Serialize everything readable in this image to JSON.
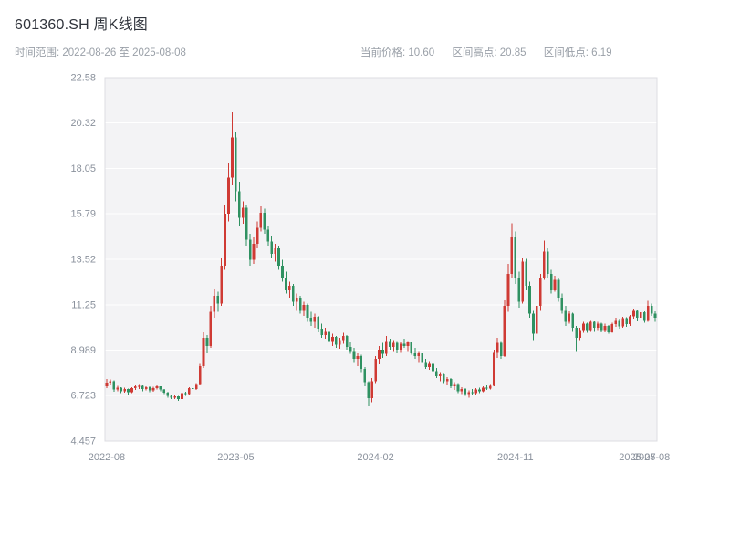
{
  "header": {
    "title": "601360.SH 周K线图",
    "time_range_label": "时间范围: 2022-08-26 至 2025-08-08",
    "current_price_label": "当前价格: 10.60",
    "range_high_label": "区间高点: 20.85",
    "range_low_label": "区间低点: 6.19"
  },
  "colors": {
    "up": "#cf3a34",
    "down": "#2f9161",
    "plot_bg": "#f3f3f5",
    "grid": "#ffffff",
    "plot_border": "#dddde2",
    "axis_text": "#8a919c",
    "title_text": "#30343c",
    "subtitle_text": "#9aa0a8"
  },
  "chart_data": {
    "type": "candlestick",
    "title": "601360.SH 周K线图",
    "interval": "weekly",
    "symbol": "601360.SH",
    "date_range": [
      "2022-08-26",
      "2025-08-08"
    ],
    "current_price": 10.6,
    "range_high": 20.85,
    "range_low": 6.19,
    "ylim": [
      4.457,
      22.58
    ],
    "y_ticks": [
      4.457,
      6.723,
      8.989,
      11.25,
      13.52,
      15.79,
      18.05,
      20.32,
      22.58
    ],
    "x_ticks": [
      {
        "label": "2022-08",
        "index": 0
      },
      {
        "label": "2023-05",
        "index": 36
      },
      {
        "label": "2024-02",
        "index": 75
      },
      {
        "label": "2024-11",
        "index": 114
      },
      {
        "label": "2025-07",
        "index": 148
      },
      {
        "label": "2025-08",
        "index": 152
      }
    ],
    "up_color": "#cf3a34",
    "down_color": "#2f9161",
    "candles_format": [
      "open",
      "high",
      "low",
      "close"
    ],
    "candles": [
      [
        7.2,
        7.55,
        7.1,
        7.38
      ],
      [
        7.38,
        7.52,
        7.25,
        7.45
      ],
      [
        7.45,
        7.48,
        6.92,
        7.02
      ],
      [
        7.02,
        7.22,
        6.95,
        7.12
      ],
      [
        7.12,
        7.15,
        6.85,
        6.95
      ],
      [
        6.95,
        7.12,
        6.88,
        7.05
      ],
      [
        7.05,
        7.08,
        6.78,
        6.9
      ],
      [
        6.9,
        7.15,
        6.85,
        7.1
      ],
      [
        7.1,
        7.25,
        7.0,
        7.18
      ],
      [
        7.18,
        7.3,
        7.05,
        7.22
      ],
      [
        7.22,
        7.25,
        6.95,
        7.05
      ],
      [
        7.05,
        7.2,
        6.98,
        7.14
      ],
      [
        7.14,
        7.18,
        6.9,
        6.98
      ],
      [
        6.98,
        7.16,
        6.92,
        7.1
      ],
      [
        7.1,
        7.24,
        7.02,
        7.18
      ],
      [
        7.18,
        7.2,
        6.95,
        7.02
      ],
      [
        7.02,
        7.06,
        6.8,
        6.88
      ],
      [
        6.88,
        6.92,
        6.62,
        6.7
      ],
      [
        6.7,
        6.78,
        6.55,
        6.62
      ],
      [
        6.62,
        6.75,
        6.56,
        6.69
      ],
      [
        6.69,
        6.72,
        6.45,
        6.55
      ],
      [
        6.55,
        6.9,
        6.52,
        6.85
      ],
      [
        6.85,
        6.92,
        6.72,
        6.8
      ],
      [
        6.8,
        7.15,
        6.78,
        7.1
      ],
      [
        7.1,
        7.18,
        6.98,
        7.05
      ],
      [
        7.05,
        7.35,
        7.0,
        7.3
      ],
      [
        7.3,
        8.35,
        7.25,
        8.2
      ],
      [
        8.2,
        9.9,
        8.1,
        9.6
      ],
      [
        9.6,
        9.75,
        8.85,
        9.2
      ],
      [
        9.2,
        11.2,
        9.1,
        10.9
      ],
      [
        10.9,
        12.05,
        10.6,
        11.7
      ],
      [
        11.7,
        11.9,
        10.9,
        11.3
      ],
      [
        11.3,
        13.6,
        11.2,
        13.2
      ],
      [
        13.2,
        16.2,
        13.0,
        15.8
      ],
      [
        15.8,
        18.3,
        15.4,
        17.6
      ],
      [
        17.6,
        20.85,
        17.2,
        19.6
      ],
      [
        19.6,
        19.9,
        16.4,
        16.9
      ],
      [
        16.9,
        17.4,
        15.2,
        15.6
      ],
      [
        15.6,
        16.4,
        15.3,
        16.1
      ],
      [
        16.1,
        16.2,
        14.2,
        14.5
      ],
      [
        14.5,
        14.8,
        13.2,
        13.5
      ],
      [
        13.5,
        14.6,
        13.3,
        14.3
      ],
      [
        14.3,
        15.4,
        14.1,
        15.1
      ],
      [
        15.1,
        16.15,
        14.9,
        15.85
      ],
      [
        15.85,
        16.05,
        14.8,
        15.0
      ],
      [
        15.0,
        15.2,
        14.2,
        14.4
      ],
      [
        14.4,
        14.7,
        13.6,
        13.8
      ],
      [
        13.8,
        14.3,
        13.4,
        14.1
      ],
      [
        14.1,
        14.2,
        13.0,
        13.2
      ],
      [
        13.2,
        13.5,
        12.4,
        12.6
      ],
      [
        12.6,
        12.9,
        11.8,
        12.0
      ],
      [
        12.0,
        12.4,
        11.6,
        12.2
      ],
      [
        12.2,
        12.3,
        11.2,
        11.4
      ],
      [
        11.4,
        11.8,
        11.0,
        11.6
      ],
      [
        11.6,
        11.7,
        10.8,
        11.0
      ],
      [
        11.0,
        11.4,
        10.7,
        11.25
      ],
      [
        11.25,
        11.3,
        10.4,
        10.6
      ],
      [
        10.6,
        10.9,
        10.2,
        10.4
      ],
      [
        10.4,
        10.8,
        10.1,
        10.65
      ],
      [
        10.65,
        10.7,
        9.9,
        10.05
      ],
      [
        10.05,
        10.3,
        9.6,
        9.75
      ],
      [
        9.75,
        10.1,
        9.55,
        9.95
      ],
      [
        9.95,
        10.0,
        9.3,
        9.45
      ],
      [
        9.45,
        9.8,
        9.2,
        9.65
      ],
      [
        9.65,
        9.7,
        9.1,
        9.25
      ],
      [
        9.25,
        9.6,
        9.05,
        9.5
      ],
      [
        9.5,
        9.85,
        9.3,
        9.7
      ],
      [
        9.7,
        9.75,
        9.0,
        9.15
      ],
      [
        9.15,
        9.4,
        8.8,
        8.95
      ],
      [
        8.95,
        9.1,
        8.4,
        8.55
      ],
      [
        8.55,
        8.85,
        8.2,
        8.7
      ],
      [
        8.7,
        8.75,
        7.9,
        8.05
      ],
      [
        8.05,
        8.15,
        7.2,
        7.4
      ],
      [
        7.4,
        7.45,
        6.19,
        6.6
      ],
      [
        6.6,
        7.6,
        6.4,
        7.45
      ],
      [
        7.45,
        8.7,
        7.35,
        8.55
      ],
      [
        8.55,
        9.2,
        8.3,
        9.0
      ],
      [
        9.0,
        9.35,
        8.6,
        8.8
      ],
      [
        8.8,
        9.7,
        8.7,
        9.45
      ],
      [
        9.45,
        9.55,
        9.0,
        9.15
      ],
      [
        9.15,
        9.5,
        8.95,
        9.35
      ],
      [
        9.35,
        9.45,
        8.85,
        9.0
      ],
      [
        9.0,
        9.4,
        8.9,
        9.3
      ],
      [
        9.3,
        9.55,
        9.1,
        9.2
      ],
      [
        9.2,
        9.45,
        8.95,
        9.38
      ],
      [
        9.38,
        9.42,
        8.75,
        8.85
      ],
      [
        8.85,
        9.1,
        8.55,
        8.7
      ],
      [
        8.7,
        8.95,
        8.4,
        8.85
      ],
      [
        8.85,
        8.9,
        8.25,
        8.4
      ],
      [
        8.4,
        8.55,
        8.05,
        8.15
      ],
      [
        8.15,
        8.45,
        8.0,
        8.35
      ],
      [
        8.35,
        8.4,
        7.85,
        7.95
      ],
      [
        7.95,
        8.1,
        7.6,
        7.7
      ],
      [
        7.7,
        7.9,
        7.45,
        7.8
      ],
      [
        7.8,
        7.85,
        7.35,
        7.45
      ],
      [
        7.45,
        7.65,
        7.25,
        7.55
      ],
      [
        7.55,
        7.6,
        7.1,
        7.2
      ],
      [
        7.2,
        7.4,
        7.0,
        7.3
      ],
      [
        7.3,
        7.35,
        6.85,
        6.95
      ],
      [
        6.95,
        7.15,
        6.8,
        7.05
      ],
      [
        7.05,
        7.1,
        6.7,
        6.8
      ],
      [
        6.8,
        6.98,
        6.62,
        6.9
      ],
      [
        6.9,
        7.05,
        6.75,
        6.85
      ],
      [
        6.85,
        7.1,
        6.78,
        7.02
      ],
      [
        7.02,
        7.12,
        6.85,
        6.95
      ],
      [
        6.95,
        7.2,
        6.9,
        7.12
      ],
      [
        7.12,
        7.25,
        7.0,
        7.08
      ],
      [
        7.08,
        7.3,
        7.02,
        7.22
      ],
      [
        7.22,
        9.0,
        7.18,
        8.9
      ],
      [
        8.9,
        9.6,
        8.6,
        9.35
      ],
      [
        9.35,
        9.45,
        8.55,
        8.7
      ],
      [
        8.7,
        11.5,
        8.65,
        11.2
      ],
      [
        11.2,
        13.3,
        10.9,
        12.8
      ],
      [
        12.8,
        15.31,
        12.6,
        14.6
      ],
      [
        14.6,
        14.9,
        12.3,
        12.6
      ],
      [
        12.6,
        12.9,
        11.1,
        11.4
      ],
      [
        11.4,
        13.6,
        11.3,
        13.4
      ],
      [
        13.4,
        13.55,
        12.0,
        12.2
      ],
      [
        12.2,
        12.4,
        10.6,
        10.8
      ],
      [
        10.8,
        11.0,
        9.5,
        9.8
      ],
      [
        9.8,
        11.4,
        9.7,
        11.2
      ],
      [
        11.2,
        12.8,
        11.0,
        12.6
      ],
      [
        12.6,
        14.45,
        12.5,
        13.9
      ],
      [
        13.9,
        14.1,
        12.6,
        12.8
      ],
      [
        12.8,
        13.0,
        11.8,
        12.0
      ],
      [
        12.0,
        12.7,
        11.9,
        12.5
      ],
      [
        12.5,
        12.6,
        11.4,
        11.6
      ],
      [
        11.6,
        11.8,
        10.8,
        11.0
      ],
      [
        11.0,
        11.2,
        10.2,
        10.4
      ],
      [
        10.4,
        10.95,
        10.3,
        10.8
      ],
      [
        10.8,
        10.85,
        9.95,
        10.1
      ],
      [
        10.1,
        10.2,
        8.95,
        9.6
      ],
      [
        9.6,
        10.1,
        9.5,
        10.0
      ],
      [
        10.0,
        10.4,
        9.85,
        10.3
      ],
      [
        10.3,
        10.35,
        9.85,
        10.0
      ],
      [
        10.0,
        10.5,
        9.95,
        10.4
      ],
      [
        10.4,
        10.45,
        9.95,
        10.1
      ],
      [
        10.1,
        10.4,
        10.0,
        10.3
      ],
      [
        10.3,
        10.35,
        9.9,
        10.0
      ],
      [
        10.0,
        10.3,
        9.92,
        10.2
      ],
      [
        10.2,
        10.25,
        9.8,
        9.9
      ],
      [
        9.9,
        10.35,
        9.85,
        10.28
      ],
      [
        10.28,
        10.6,
        10.15,
        10.5
      ],
      [
        10.5,
        10.55,
        10.05,
        10.18
      ],
      [
        10.18,
        10.65,
        10.1,
        10.58
      ],
      [
        10.58,
        10.62,
        10.15,
        10.28
      ],
      [
        10.28,
        10.75,
        10.2,
        10.68
      ],
      [
        10.68,
        11.05,
        10.55,
        10.98
      ],
      [
        10.98,
        11.02,
        10.45,
        10.6
      ],
      [
        10.6,
        10.95,
        10.5,
        10.88
      ],
      [
        10.88,
        10.92,
        10.35,
        10.48
      ],
      [
        10.48,
        11.45,
        10.4,
        11.2
      ],
      [
        11.2,
        11.3,
        10.7,
        10.82
      ],
      [
        10.82,
        10.95,
        10.4,
        10.6
      ]
    ]
  }
}
